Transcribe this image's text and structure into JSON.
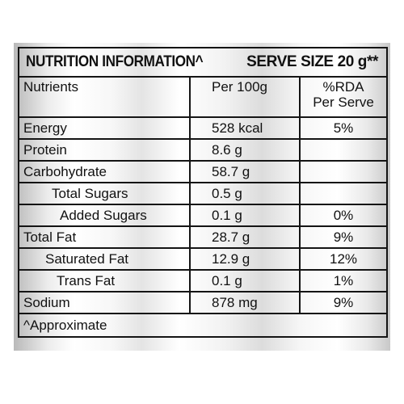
{
  "label": {
    "title_left": "NUTRITION INFORMATION^",
    "title_right": "SERVE SIZE 20 g**",
    "headers": {
      "nutrients": "Nutrients",
      "per100": "Per 100g",
      "rda_line1": "%RDA",
      "rda_line2": "Per Serve"
    },
    "rows": [
      {
        "name": "Energy",
        "per100": "528 kcal",
        "rda": "5%"
      },
      {
        "name": "Protein",
        "per100": "8.6 g",
        "rda": ""
      },
      {
        "name": "Carbohydrate",
        "per100": "58.7 g",
        "rda": ""
      },
      {
        "name": "Total Sugars",
        "per100": "0.5 g",
        "rda": ""
      },
      {
        "name": "Added Sugars",
        "per100": "0.1 g",
        "rda": "0%"
      },
      {
        "name": "Total Fat",
        "per100": "28.7 g",
        "rda": "9%"
      },
      {
        "name": "Saturated Fat",
        "per100": "12.9 g",
        "rda": "12%"
      },
      {
        "name": "Trans Fat",
        "per100": "0.1 g",
        "rda": "1%"
      },
      {
        "name": "Sodium",
        "per100": "878 mg",
        "rda": "9%"
      }
    ],
    "footnote": "^Approximate"
  }
}
